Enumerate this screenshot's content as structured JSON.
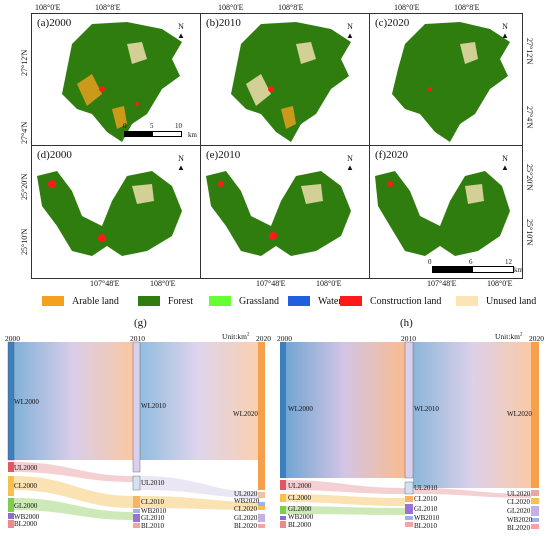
{
  "top_ticks": [
    "108°0'E",
    "108°8'E"
  ],
  "bottom_ticks": [
    "107°48'E",
    "108°0'E"
  ],
  "lat_top": [
    "27°12'N",
    "27°4'N"
  ],
  "lat_bottom": [
    "25°20'N",
    "25°10'N"
  ],
  "north": "N",
  "scale_top": [
    "0",
    "5",
    "10",
    "km"
  ],
  "scale_bottom": [
    "0",
    "6",
    "12",
    "km"
  ],
  "panels": [
    {
      "label": "(a)2000"
    },
    {
      "label": "(b)2010"
    },
    {
      "label": "(c)2020"
    },
    {
      "label": "(d)2000"
    },
    {
      "label": "(e)2010"
    },
    {
      "label": "(f)2020"
    }
  ],
  "legend": [
    {
      "label": "Arable land",
      "color": "#f4a11f"
    },
    {
      "label": "Forest",
      "color": "#2e7d0e"
    },
    {
      "label": "Grassland",
      "color": "#66ff33"
    },
    {
      "label": "Water",
      "color": "#1f5fe0"
    },
    {
      "label": "Construction land",
      "color": "#ff1a1a"
    },
    {
      "label": "Unused land",
      "color": "#fbe5b6"
    }
  ],
  "sankeys": [
    {
      "title": "(g)",
      "years": [
        "2000",
        "2010",
        "Unit:km",
        "2020"
      ],
      "unit_sup": "2",
      "left": [
        "WL2000",
        "UL2000",
        "CL2000",
        "GL2000",
        "WB2000",
        "BL2000"
      ],
      "mid": [
        "WL2010",
        "UL2010",
        "CL2010",
        "WB2010",
        "GL2010",
        "BL2010"
      ],
      "right": [
        "WL2020",
        "UL2020",
        "WB2020",
        "CL2020",
        "GL2020",
        "BL2020"
      ]
    },
    {
      "title": "(h)",
      "years": [
        "2000",
        "2010",
        "Unit:km",
        "2020"
      ],
      "unit_sup": "2",
      "left": [
        "WL2000",
        "UL2000",
        "CL2000",
        "GL2000",
        "WB2000",
        "BL2000"
      ],
      "mid": [
        "WL2010",
        "UL2010",
        "CL2010",
        "GL2010",
        "WB2010",
        "BL2010"
      ],
      "right": [
        "WL2020",
        "UL2020",
        "CL2020",
        "GL2020",
        "WB2020",
        "BL2020"
      ]
    }
  ]
}
